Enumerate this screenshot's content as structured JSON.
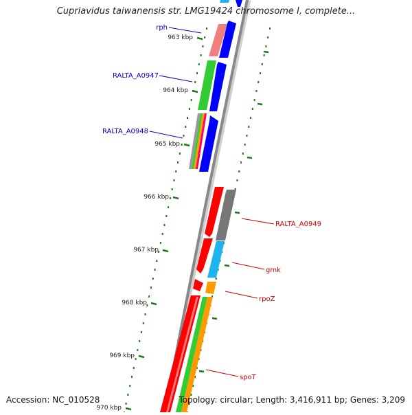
{
  "title": "Cupriavidus taiwanensis str. LMG19424 chromosome I, complete...",
  "footer": {
    "accession": "Accession: NC_010528",
    "summary": "Topology: circular; Length: 3,416,911 bp; Genes: 3,209"
  },
  "ticks": [
    "963 kbp",
    "964 kbp",
    "965 kbp",
    "966 kbp",
    "967 kbp",
    "968 kbp",
    "969 kbp",
    "970 kbp"
  ],
  "left_gene_labels": [
    "rph",
    "RALTA_A0947",
    "RALTA_A0948"
  ],
  "right_gene_labels": [
    "RALTA_A0949",
    "gmk",
    "rpoZ",
    "spoT"
  ],
  "colors": {
    "label_left": "#0000cc",
    "label_right": "#cc0000",
    "tick": "#1a7a1a",
    "backbone": "#888888",
    "blue": "#0000ff",
    "red": "#ff0000",
    "green": "#33cc33",
    "salmon": "#f08080",
    "cyan": "#1eb4f0",
    "gray": "#777777",
    "orange": "#ff9900"
  }
}
